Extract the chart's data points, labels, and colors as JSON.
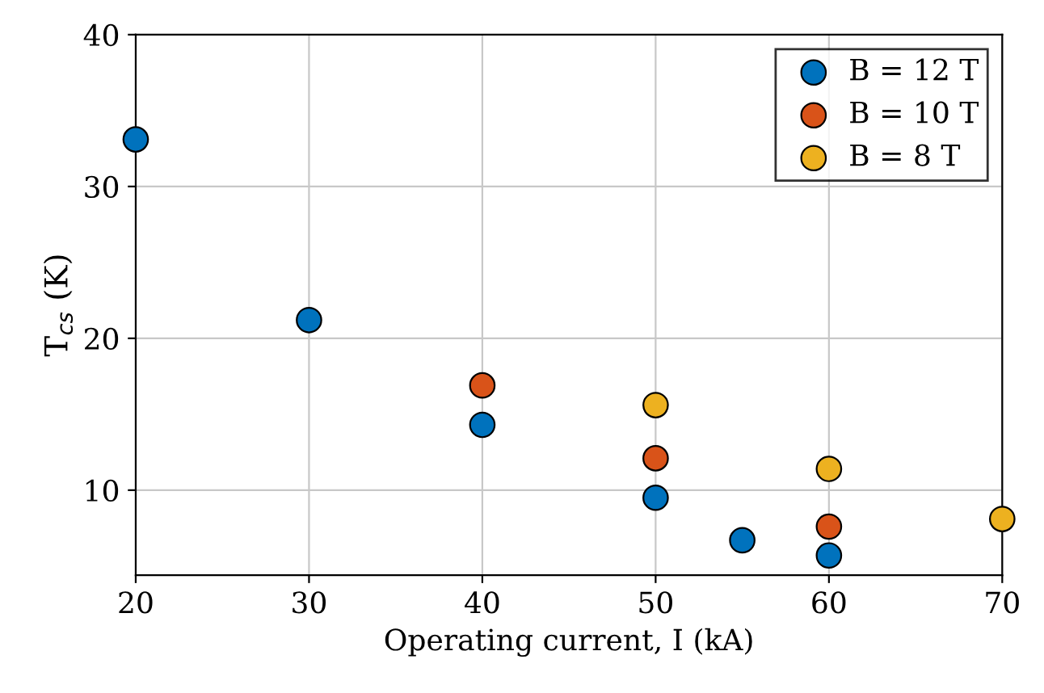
{
  "chart_data": {
    "type": "scatter",
    "xlabel": "Operating current, I (kA)",
    "ylabel": "T$_{cs}$ (K)",
    "xlim": [
      20,
      70
    ],
    "xticks": [
      20,
      30,
      40,
      50,
      60,
      70
    ],
    "ylim": [
      4.4,
      40
    ],
    "yticks": [
      10,
      20,
      30,
      40
    ],
    "grid": true,
    "legend": "top right",
    "marker": "circle",
    "series": [
      {
        "name": "B = 12 T",
        "color": "#0072bd",
        "x": [
          20,
          30,
          40,
          50,
          55,
          60
        ],
        "values": [
          33.1,
          21.2,
          14.3,
          9.5,
          6.7,
          5.7
        ]
      },
      {
        "name": "B = 10 T",
        "color": "#d95319",
        "x": [
          40,
          50,
          60
        ],
        "values": [
          16.9,
          12.1,
          7.6
        ]
      },
      {
        "name": "B = 8 T",
        "color": "#edb120",
        "x": [
          50,
          60,
          70
        ],
        "values": [
          15.6,
          11.4,
          8.1
        ]
      }
    ]
  }
}
